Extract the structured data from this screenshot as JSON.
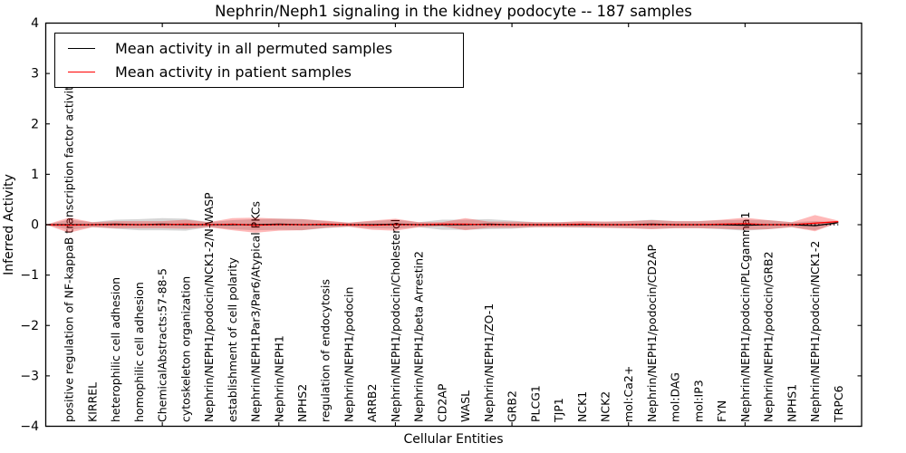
{
  "figure": {
    "title": "Nephrin/Neph1 signaling in the kidney podocyte -- 187 samples",
    "xlabel": "Cellular Entities",
    "ylabel": "Inferred Activity"
  },
  "legend": {
    "items": [
      {
        "label": "Mean activity in all permuted samples",
        "color": "#000000"
      },
      {
        "label": "Mean activity in patient samples",
        "color": "#ff0000"
      }
    ]
  },
  "chart_data": {
    "type": "line",
    "title": "Nephrin/Neph1 signaling in the kidney podocyte -- 187 samples",
    "xlabel": "Cellular Entities",
    "ylabel": "Inferred Activity",
    "xlim": [
      0,
      35
    ],
    "ylim": [
      -4,
      4
    ],
    "yticks": [
      4,
      3,
      2,
      1,
      0,
      -1,
      -2,
      -3,
      -4
    ],
    "xticks": [
      5,
      10,
      15,
      20,
      25,
      30
    ],
    "grid": false,
    "legend_position": "upper left",
    "zero_line": true,
    "categories": [
      "positive regulation of NF-kappaB transcription factor activity",
      "KIRREL",
      "heterophilic cell adhesion",
      "homophilic cell adhesion",
      "ChemicalAbstracts:57-88-5",
      "cytoskeleton organization",
      "Nephrin/NEPH1/podocin/NCK1-2/N-WASP",
      "establishment of cell polarity",
      "Nephrin/NEPH1Par3/Par6/Atypical PKCs",
      "Nephrin/NEPH1",
      "NPHS2",
      "regulation of endocytosis",
      "Nephrin/NEPH1/podocin",
      "ARRB2",
      "Nephrin/NEPH1/podocin/Cholesterol",
      "Nephrin/NEPH1/beta Arrestin2",
      "CD2AP",
      "WASL",
      "Nephrin/NEPH1/ZO-1",
      "GRB2",
      "PLCG1",
      "TJP1",
      "NCK1",
      "NCK2",
      "mol:Ca2+",
      "Nephrin/NEPH1/podocin/CD2AP",
      "mol:DAG",
      "mol:IP3",
      "FYN",
      "Nephrin/NEPH1/podocin/PLCgamma1",
      "Nephrin/NEPH1/podocin/GRB2",
      "NPHS1",
      "Nephrin/NEPH1/podocin/NCK1-2",
      "TRPC6"
    ],
    "x": [
      0,
      1,
      2,
      3,
      4,
      5,
      6,
      7,
      8,
      9,
      10,
      11,
      12,
      13,
      14,
      15,
      16,
      17,
      18,
      19,
      20,
      21,
      22,
      23,
      24,
      25,
      26,
      27,
      28,
      29,
      30,
      31,
      32,
      33,
      34
    ],
    "series": [
      {
        "key": "permuted",
        "name": "Mean activity in all permuted samples",
        "color": "#000000",
        "band_color": "rgba(0,0,0,0.16)",
        "mean": [
          0,
          0.0,
          0.0,
          0.01,
          0.0,
          0.01,
          0.0,
          0.0,
          0.0,
          0.0,
          0.01,
          0.0,
          0.0,
          0.0,
          0.0,
          0.01,
          0.0,
          0.0,
          0.0,
          0.01,
          0.0,
          0.0,
          0.0,
          0.0,
          0.0,
          0.0,
          0.01,
          0.0,
          0.0,
          0.0,
          -0.01,
          0.0,
          0.0,
          -0.02,
          0.04
        ],
        "std": [
          0,
          0.1,
          0.05,
          0.09,
          0.11,
          0.12,
          0.12,
          0.05,
          0.09,
          0.11,
          0.11,
          0.11,
          0.07,
          0.04,
          0.07,
          0.09,
          0.05,
          0.1,
          0.1,
          0.1,
          0.08,
          0.05,
          0.05,
          0.06,
          0.06,
          0.07,
          0.09,
          0.07,
          0.07,
          0.09,
          0.11,
          0.09,
          0.05,
          0.09,
          0.01
        ]
      },
      {
        "key": "patient",
        "name": "Mean activity in patient samples",
        "color": "#ff0000",
        "band_color": "rgba(255,0,0,0.28)",
        "mean": [
          0,
          -0.01,
          0.0,
          0.0,
          0.0,
          0.0,
          0.01,
          0.0,
          0.01,
          -0.01,
          0.0,
          0.0,
          0.01,
          0.0,
          -0.01,
          0.0,
          0.0,
          0.01,
          0.01,
          0.0,
          0.0,
          0.0,
          0.0,
          0.01,
          0.0,
          0.0,
          0.0,
          0.0,
          0.0,
          0.01,
          0.02,
          0.0,
          0.0,
          0.03,
          0.06
        ],
        "std": [
          0,
          0.15,
          0.05,
          0.07,
          0.07,
          0.07,
          0.09,
          0.05,
          0.12,
          0.15,
          0.12,
          0.11,
          0.07,
          0.04,
          0.09,
          0.12,
          0.05,
          0.04,
          0.12,
          0.06,
          0.06,
          0.05,
          0.05,
          0.06,
          0.06,
          0.07,
          0.09,
          0.07,
          0.07,
          0.09,
          0.12,
          0.09,
          0.05,
          0.16,
          0.02
        ]
      }
    ]
  }
}
